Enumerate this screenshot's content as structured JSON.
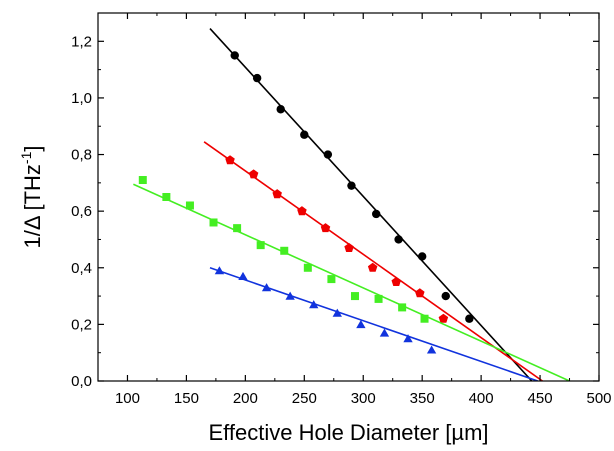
{
  "chart_data": {
    "type": "scatter",
    "title": "",
    "xlabel": "Effective Hole Diameter [µm]",
    "ylabel_main": "1/Δ [THz",
    "ylabel_sup": "-1",
    "ylabel_end": "]",
    "xlim": [
      75,
      500
    ],
    "ylim": [
      0.0,
      1.3
    ],
    "x_ticks": [
      100,
      150,
      200,
      250,
      300,
      350,
      400,
      450,
      500
    ],
    "x_tick_labels": [
      "100",
      "150",
      "200",
      "250",
      "300",
      "350",
      "400",
      "450",
      "500"
    ],
    "y_ticks": [
      0.0,
      0.2,
      0.4,
      0.6,
      0.8,
      1.0,
      1.2
    ],
    "y_tick_labels": [
      "0,0",
      "0,2",
      "0,4",
      "0,6",
      "0,8",
      "1,0",
      "1,2"
    ],
    "grid": false,
    "series": [
      {
        "color": "#000000",
        "marker": "circle",
        "x": [
          191,
          210,
          230,
          250,
          270,
          290,
          311,
          330,
          350,
          370,
          390
        ],
        "y": [
          1.15,
          1.07,
          0.96,
          0.87,
          0.8,
          0.69,
          0.59,
          0.5,
          0.44,
          0.3,
          0.22
        ],
        "fit": {
          "x": [
            170,
            443
          ],
          "y": [
            1.245,
            0.0
          ]
        }
      },
      {
        "color": "#ee0000",
        "marker": "pentagon",
        "x": [
          187,
          207,
          227,
          248,
          268,
          288,
          308,
          328,
          348,
          368
        ],
        "y": [
          0.78,
          0.73,
          0.66,
          0.6,
          0.54,
          0.47,
          0.4,
          0.35,
          0.31,
          0.22
        ],
        "fit": {
          "x": [
            165,
            452
          ],
          "y": [
            0.845,
            0.0
          ]
        }
      },
      {
        "color": "#44ee22",
        "marker": "square",
        "x": [
          113,
          133,
          153,
          173,
          193,
          213,
          233,
          253,
          273,
          293,
          313,
          333,
          352
        ],
        "y": [
          0.71,
          0.65,
          0.62,
          0.56,
          0.54,
          0.48,
          0.46,
          0.4,
          0.36,
          0.3,
          0.29,
          0.26,
          0.22
        ],
        "fit": {
          "x": [
            105,
            475
          ],
          "y": [
            0.695,
            0.0
          ]
        }
      },
      {
        "color": "#1133dd",
        "marker": "triangle",
        "x": [
          178,
          198,
          218,
          238,
          258,
          278,
          298,
          318,
          338,
          358
        ],
        "y": [
          0.39,
          0.37,
          0.33,
          0.3,
          0.27,
          0.24,
          0.2,
          0.17,
          0.15,
          0.11
        ],
        "fit": {
          "x": [
            170,
            448
          ],
          "y": [
            0.4,
            0.0
          ]
        }
      }
    ]
  }
}
